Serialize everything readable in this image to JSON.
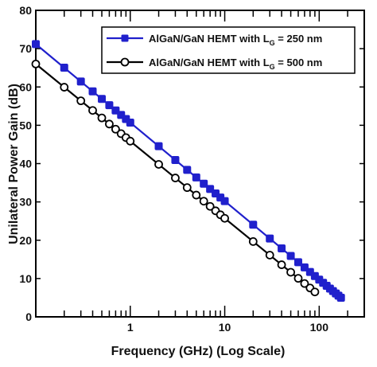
{
  "chart_data": {
    "type": "line",
    "xlabel": "Frequency (GHz) (Log Scale)",
    "ylabel": "Unilateral Power Gain (dB)",
    "xscale": "log",
    "xlim": [
      0.1,
      300
    ],
    "ylim": [
      0,
      80
    ],
    "y_ticks": [
      0,
      10,
      20,
      30,
      40,
      50,
      60,
      70,
      80
    ],
    "x_tick_labels": [
      {
        "value": 1,
        "label": "1"
      },
      {
        "value": 10,
        "label": "10"
      },
      {
        "value": 100,
        "label": "100"
      }
    ],
    "legend_position": "top-right",
    "grid": false,
    "series": [
      {
        "name_prefix": "AlGaN/GaN HEMT with L",
        "name_subscript": "G",
        "name_suffix": " = 250 nm",
        "color": "#2020cc",
        "marker": "filled-square",
        "start": {
          "x": 0.1,
          "y": 71.2
        },
        "end": {
          "x": 170,
          "y": 5
        },
        "marker_x": [
          0.1,
          0.2,
          0.3,
          0.4,
          0.5,
          0.6,
          0.7,
          0.8,
          0.9,
          1,
          2,
          3,
          4,
          5,
          6,
          7,
          8,
          9,
          10,
          20,
          30,
          40,
          50,
          60,
          70,
          80,
          90,
          100,
          110,
          120,
          130,
          140,
          150,
          160,
          170
        ]
      },
      {
        "name_prefix": "AlGaN/GaN HEMT with L",
        "name_subscript": "G",
        "name_suffix": " = 500 nm",
        "color": "#000000",
        "marker": "open-circle",
        "start": {
          "x": 0.1,
          "y": 66
        },
        "end": {
          "x": 90,
          "y": 6.5
        },
        "marker_x": [
          0.1,
          0.2,
          0.3,
          0.4,
          0.5,
          0.6,
          0.7,
          0.8,
          0.9,
          1,
          2,
          3,
          4,
          5,
          6,
          7,
          8,
          9,
          10,
          20,
          30,
          40,
          50,
          60,
          70,
          80,
          90
        ]
      }
    ]
  }
}
